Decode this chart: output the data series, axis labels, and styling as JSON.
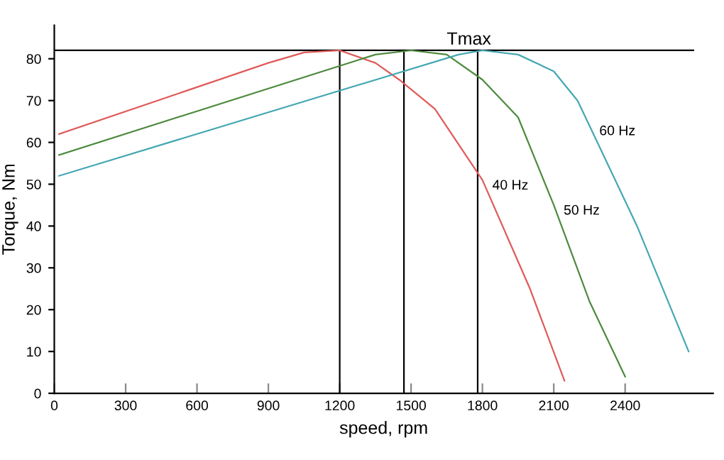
{
  "chart_data": {
    "type": "line",
    "xlabel": "speed, rpm",
    "ylabel": "Torque, Nm",
    "xlim": [
      0,
      2770
    ],
    "ylim": [
      0,
      88
    ],
    "xticks": [
      0,
      300,
      600,
      900,
      1200,
      1500,
      1800,
      2100,
      2400
    ],
    "yticks": [
      0,
      10,
      20,
      30,
      40,
      50,
      60,
      70,
      80
    ],
    "grid": false,
    "legend": false,
    "marker": "none",
    "line_style": "solid",
    "series": [
      {
        "name": "40 Hz",
        "color": "#e05a5a",
        "x": [
          20,
          900,
          1050,
          1200,
          1350,
          1450,
          1600,
          1800,
          2000,
          2145
        ],
        "values": [
          62,
          79,
          81.5,
          82,
          79,
          75,
          68,
          51,
          25,
          3
        ]
      },
      {
        "name": "50 Hz",
        "color": "#4e8a3e",
        "x": [
          20,
          1350,
          1500,
          1650,
          1800,
          1950,
          2100,
          2250,
          2400
        ],
        "values": [
          57,
          81,
          82,
          81,
          75,
          66,
          45,
          22,
          4
        ]
      },
      {
        "name": "60 Hz",
        "color": "#45a8b2",
        "x": [
          20,
          1700,
          1800,
          1950,
          2100,
          2200,
          2250,
          2450,
          2667
        ],
        "values": [
          52,
          81,
          82,
          81,
          77,
          70,
          64,
          40,
          10
        ]
      }
    ],
    "ref_lines": [
      {
        "axis": "y",
        "value": 82,
        "label": "Tmax",
        "color": "#000000"
      },
      {
        "axis": "x",
        "value": 1200,
        "color": "#000000"
      },
      {
        "axis": "x",
        "value": 1470,
        "color": "#000000"
      },
      {
        "axis": "x",
        "value": 1780,
        "color": "#000000"
      }
    ]
  }
}
